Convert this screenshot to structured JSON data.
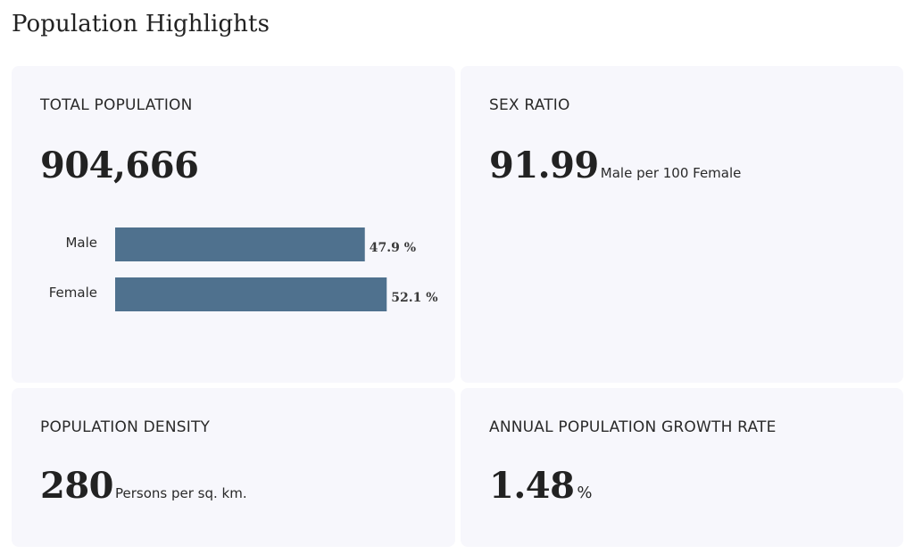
{
  "page": {
    "title": "Population Highlights"
  },
  "cards": {
    "total_population": {
      "label": "TOTAL POPULATION",
      "value": "904,666"
    },
    "sex_ratio": {
      "label": "SEX RATIO",
      "value": "91.99",
      "unit": "Male per 100 Female"
    },
    "population_density": {
      "label": "POPULATION DENSITY",
      "value": "280",
      "unit": "Persons per sq. km."
    },
    "growth_rate": {
      "label": "ANNUAL POPULATION GROWTH RATE",
      "value": "1.48",
      "unit": "%"
    }
  },
  "chart_data": {
    "type": "bar",
    "orientation": "horizontal",
    "categories": [
      "Male",
      "Female"
    ],
    "values": [
      47.9,
      52.1
    ],
    "value_labels": [
      "47.9 %",
      "52.1 %"
    ],
    "xlim": [
      0,
      100
    ],
    "title": "",
    "xlabel": "",
    "ylabel": "",
    "grid": false,
    "bar_color": "#4f718e"
  }
}
